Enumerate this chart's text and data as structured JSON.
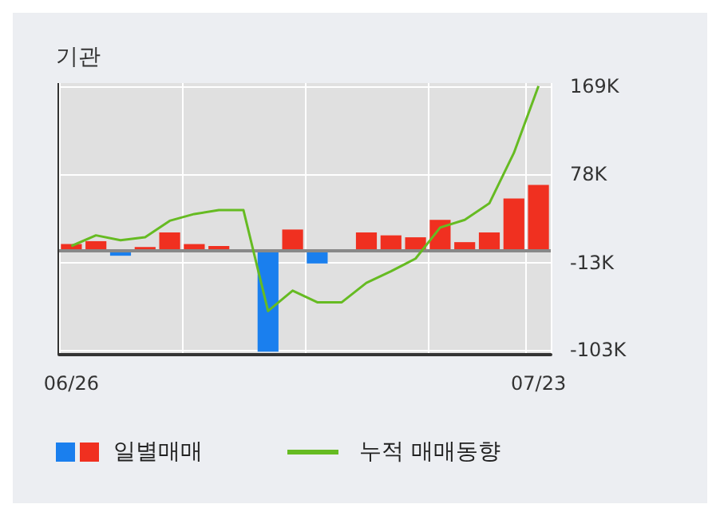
{
  "chart_data": {
    "type": "bar",
    "title": "기관",
    "categories": [
      "06/26",
      null,
      null,
      null,
      null,
      null,
      null,
      null,
      null,
      null,
      null,
      null,
      null,
      null,
      null,
      null,
      null,
      null,
      null,
      "07/23"
    ],
    "series": [
      {
        "name": "일별매매",
        "colors": [
          "#f03020",
          "#f03020",
          "#1a7fee",
          "#f03020",
          "#f03020",
          "#f03020",
          "#f03020",
          "#f03020",
          "#1a7fee",
          "#f03020",
          "#1a7fee",
          "#f03020",
          "#f03020",
          "#f03020",
          "#f03020",
          "#f03020",
          "#f03020",
          "#f03020",
          "#f03020",
          "#f03020"
        ],
        "values": [
          6,
          9,
          -6,
          3,
          18,
          6,
          4,
          0,
          -105,
          21,
          -14,
          0,
          18,
          15,
          13,
          31,
          8,
          18,
          53,
          67
        ]
      },
      {
        "name": "누적 매매동향",
        "type": "line",
        "color": "#66bb22",
        "values": [
          4,
          15,
          10,
          13,
          30,
          37,
          41,
          41,
          -63,
          -42,
          -54,
          -54,
          -34,
          -22,
          -9,
          23,
          31,
          48,
          100,
          169
        ]
      }
    ],
    "ylim": [
      -108,
      172
    ],
    "yticks": [
      {
        "value": -103,
        "label": "-103K"
      },
      {
        "value": -13,
        "label": "-13K"
      },
      {
        "value": 78,
        "label": "78K"
      },
      {
        "value": 169,
        "label": "169K"
      }
    ],
    "ref_lines": [
      {
        "axis": "y",
        "value": 0,
        "color": "#888888"
      }
    ],
    "grid": true,
    "legend": "bottom",
    "marker": "none",
    "line_style": "solid"
  }
}
